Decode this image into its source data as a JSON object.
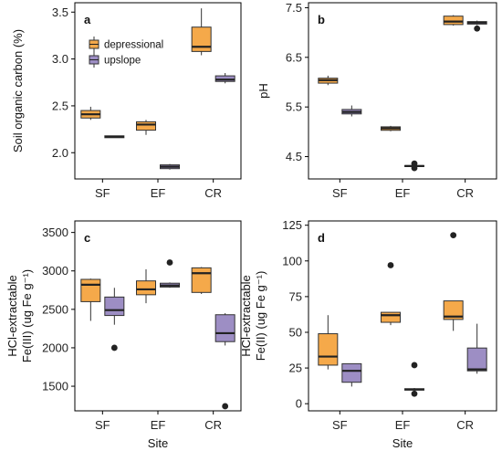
{
  "colors": {
    "depressional": "#f5a94a",
    "upslope": "#9d8ec4"
  },
  "legend": {
    "items": [
      {
        "key": "depressional",
        "label": "depressional"
      },
      {
        "key": "upslope",
        "label": "upslope"
      }
    ]
  },
  "xlabel": "Site",
  "chart_data": [
    {
      "type": "box",
      "panel": "a",
      "ylabel": "Soil organic carbon (%)",
      "ylim": [
        1.72,
        3.6
      ],
      "yticks": [
        2.0,
        2.5,
        3.0,
        3.5
      ],
      "ytick_labels": [
        "2.0",
        "2.5",
        "3.0",
        "3.5"
      ],
      "categories": [
        "SF",
        "EF",
        "CR"
      ],
      "xlabel": "",
      "legend": true,
      "series": [
        {
          "key": "depressional",
          "name": "depressional",
          "boxes": [
            {
              "min": 2.35,
              "q1": 2.37,
              "median": 2.41,
              "q3": 2.45,
              "max": 2.49,
              "outliers": []
            },
            {
              "min": 2.19,
              "q1": 2.24,
              "median": 2.3,
              "q3": 2.33,
              "max": 2.35,
              "outliers": []
            },
            {
              "min": 3.04,
              "q1": 3.08,
              "median": 3.13,
              "q3": 3.34,
              "max": 3.54,
              "outliers": []
            }
          ]
        },
        {
          "key": "upslope",
          "name": "upslope",
          "boxes": [
            {
              "min": 2.16,
              "q1": 2.16,
              "median": 2.17,
              "q3": 2.18,
              "max": 2.18,
              "outliers": []
            },
            {
              "min": 1.82,
              "q1": 1.83,
              "median": 1.85,
              "q3": 1.87,
              "max": 1.88,
              "outliers": []
            },
            {
              "min": 2.74,
              "q1": 2.76,
              "median": 2.78,
              "q3": 2.82,
              "max": 2.85,
              "outliers": []
            }
          ]
        }
      ]
    },
    {
      "type": "box",
      "panel": "b",
      "ylabel": "pH",
      "ylim": [
        4.05,
        7.6
      ],
      "yticks": [
        4.5,
        5.5,
        6.5,
        7.5
      ],
      "ytick_labels": [
        "4.5",
        "5.5",
        "6.5",
        "7.5"
      ],
      "categories": [
        "SF",
        "EF",
        "CR"
      ],
      "xlabel": "",
      "legend": false,
      "series": [
        {
          "key": "depressional",
          "name": "depressional",
          "boxes": [
            {
              "min": 5.94,
              "q1": 5.98,
              "median": 6.04,
              "q3": 6.08,
              "max": 6.13,
              "outliers": []
            },
            {
              "min": 5.01,
              "q1": 5.03,
              "median": 5.07,
              "q3": 5.1,
              "max": 5.12,
              "outliers": []
            },
            {
              "min": 7.14,
              "q1": 7.16,
              "median": 7.22,
              "q3": 7.33,
              "max": 7.35,
              "outliers": []
            }
          ]
        },
        {
          "key": "upslope",
          "name": "upslope",
          "boxes": [
            {
              "min": 5.31,
              "q1": 5.36,
              "median": 5.4,
              "q3": 5.45,
              "max": 5.53,
              "outliers": []
            },
            {
              "min": 4.3,
              "q1": 4.3,
              "median": 4.31,
              "q3": 4.32,
              "max": 4.33,
              "outliers": [
                4.27,
                4.36
              ]
            },
            {
              "min": 7.15,
              "q1": 7.17,
              "median": 7.2,
              "q3": 7.22,
              "max": 7.24,
              "outliers": [
                7.08
              ]
            }
          ]
        }
      ]
    },
    {
      "type": "box",
      "panel": "c",
      "ylabel": "HCl-extractable Fe(III) (ug Fe g⁻¹)",
      "ylabel_lines": [
        "HCl-extractable",
        "Fe(III) (ug Fe g⁻¹)"
      ],
      "ylim": [
        1180,
        3650
      ],
      "yticks": [
        1500,
        2000,
        2500,
        3000,
        3500
      ],
      "ytick_labels": [
        "1500",
        "2000",
        "2500",
        "3000",
        "3500"
      ],
      "categories": [
        "SF",
        "EF",
        "CR"
      ],
      "xlabel": "Site",
      "legend": false,
      "series": [
        {
          "key": "depressional",
          "name": "depressional",
          "boxes": [
            {
              "min": 2350,
              "q1": 2600,
              "median": 2820,
              "q3": 2890,
              "max": 2900,
              "outliers": []
            },
            {
              "min": 2580,
              "q1": 2690,
              "median": 2760,
              "q3": 2870,
              "max": 3020,
              "outliers": []
            },
            {
              "min": 2700,
              "q1": 2720,
              "median": 2970,
              "q3": 3040,
              "max": 3050,
              "outliers": []
            }
          ]
        },
        {
          "key": "upslope",
          "name": "upslope",
          "boxes": [
            {
              "min": 2300,
              "q1": 2420,
              "median": 2490,
              "q3": 2660,
              "max": 2780,
              "outliers": [
                2000
              ]
            },
            {
              "min": 2780,
              "q1": 2790,
              "median": 2810,
              "q3": 2840,
              "max": 2850,
              "outliers": [
                3110
              ]
            },
            {
              "min": 2030,
              "q1": 2080,
              "median": 2190,
              "q3": 2430,
              "max": 2450,
              "outliers": [
                1240
              ]
            }
          ]
        }
      ]
    },
    {
      "type": "box",
      "panel": "d",
      "ylabel": "HCl-extractable Fe(II) (ug Fe g⁻¹)",
      "ylabel_lines": [
        "HCl-extractable",
        "Fe(II) (ug Fe g⁻¹)"
      ],
      "ylim": [
        -5,
        128
      ],
      "yticks": [
        0,
        25,
        50,
        75,
        100,
        125
      ],
      "ytick_labels": [
        "0",
        "25",
        "50",
        "75",
        "100",
        "125"
      ],
      "categories": [
        "SF",
        "EF",
        "CR"
      ],
      "xlabel": "Site",
      "legend": false,
      "series": [
        {
          "key": "depressional",
          "name": "depressional",
          "boxes": [
            {
              "min": 24,
              "q1": 27,
              "median": 33,
              "q3": 49,
              "max": 62,
              "outliers": []
            },
            {
              "min": 55,
              "q1": 57,
              "median": 62,
              "q3": 64,
              "max": 64,
              "outliers": [
                97
              ]
            },
            {
              "min": 51,
              "q1": 59,
              "median": 61,
              "q3": 72,
              "max": 72,
              "outliers": [
                118
              ]
            }
          ]
        },
        {
          "key": "upslope",
          "name": "upslope",
          "boxes": [
            {
              "min": 12,
              "q1": 15,
              "median": 23,
              "q3": 28,
              "max": 28,
              "outliers": []
            },
            {
              "min": 9,
              "q1": 9.5,
              "median": 10,
              "q3": 10.5,
              "max": 11,
              "outliers": [
                27,
                7
              ]
            },
            {
              "min": 21,
              "q1": 23,
              "median": 24,
              "q3": 39,
              "max": 56,
              "outliers": []
            }
          ]
        }
      ]
    }
  ]
}
